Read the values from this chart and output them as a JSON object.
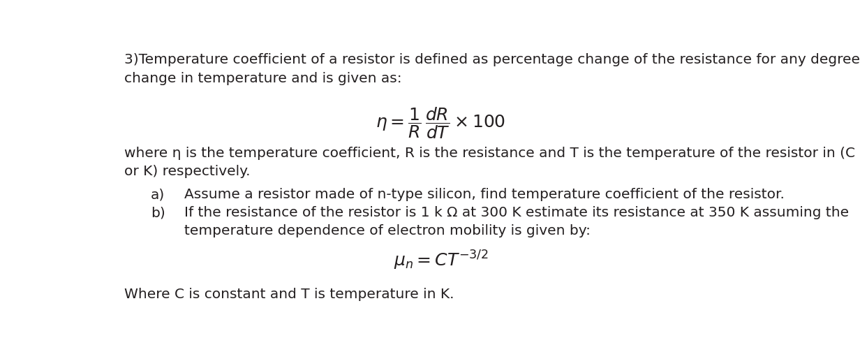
{
  "background_color": "#ffffff",
  "fig_width": 12.32,
  "fig_height": 5.14,
  "dpi": 100,
  "text_color": "#231f20",
  "line1": "3)Temperature coefficient of a resistor is defined as percentage change of the resistance for any degree",
  "line2": "change in temperature and is given as:",
  "where_text": "where η is the temperature coefficient, R is the resistance and T is the temperature of the resistor in (C",
  "or_text": "or K) respectively.",
  "item_a_label": "a)",
  "item_a_text": "Assume a resistor made of n-type silicon, find temperature coefficient of the resistor.",
  "item_b_label": "b)",
  "item_b_text1": "If the resistance of the resistor is 1 k Ω at 300 K estimate its resistance at 350 K assuming the",
  "item_b_text2": "temperature dependence of electron mobility is given by:",
  "footer": "Where C is constant and T is temperature in K.",
  "fs_body": 14.5,
  "fs_math": 18,
  "lm": 0.025,
  "lm_label": 0.065,
  "lm_text": 0.115
}
